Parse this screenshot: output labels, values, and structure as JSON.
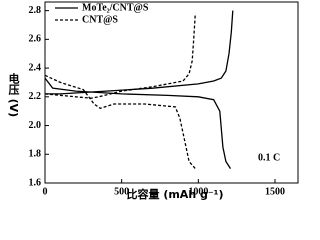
{
  "chart_data": {
    "type": "line",
    "y_label": "电压 (V)",
    "x_label": "比容量 (mAh g⁻¹)",
    "annotation": "0.1 C",
    "xlim": [
      0,
      1650
    ],
    "xticks": [
      0,
      500,
      1000,
      1500
    ],
    "ylim": [
      1.6,
      2.86
    ],
    "yticks": [
      1.6,
      1.8,
      {
        "value": 2,
        "label": "2.0"
      },
      2.2,
      2.4,
      2.6,
      2.8
    ],
    "series": [
      {
        "name": "MoTe₂/CNT@S",
        "color": "#000000",
        "dashed": false,
        "x": [
          0,
          50,
          200,
          500,
          800,
          1000,
          1100,
          1140,
          1160,
          1180,
          1210,
          null,
          0,
          100,
          400,
          700,
          1000,
          1100,
          1150,
          1180,
          1200,
          1215,
          1225
        ],
        "values": [
          2.33,
          2.26,
          2.24,
          2.22,
          2.21,
          2.2,
          2.18,
          2.1,
          1.85,
          1.75,
          1.7,
          null,
          2.22,
          2.22,
          2.24,
          2.26,
          2.29,
          2.31,
          2.33,
          2.38,
          2.5,
          2.65,
          2.8
        ]
      },
      {
        "name": "CNT@S",
        "color": "#000000",
        "dashed": true,
        "x": [
          0,
          100,
          250,
          320,
          360,
          450,
          650,
          850,
          880,
          910,
          940,
          980,
          null,
          0,
          200,
          300,
          350,
          500,
          700,
          900,
          940,
          960,
          970,
          980
        ],
        "values": [
          2.35,
          2.3,
          2.25,
          2.15,
          2.12,
          2.15,
          2.15,
          2.13,
          2.05,
          1.9,
          1.75,
          1.7,
          null,
          2.22,
          2.2,
          2.19,
          2.2,
          2.24,
          2.27,
          2.31,
          2.36,
          2.45,
          2.6,
          2.78
        ]
      }
    ]
  }
}
